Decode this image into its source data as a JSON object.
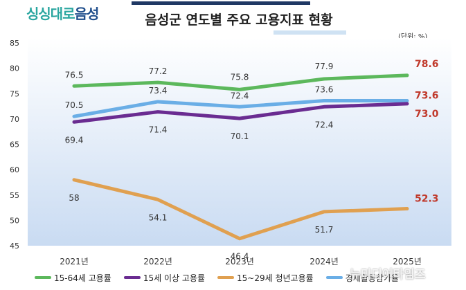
{
  "header": {
    "logo_part1": "싱싱대로",
    "logo_part2": "음성",
    "title": "음성군 연도별 주요 고용지표 현황",
    "unit": "(단위: %)"
  },
  "watermark": "뉴미디어타임즈",
  "colors": {
    "employment_15_64": "#5cb85c",
    "employment_15_plus": "#6a2c91",
    "youth_employment": "#e0a050",
    "participation": "#6aaee6",
    "latest_label": "#c0392b"
  },
  "chart_data": {
    "type": "line",
    "title": "음성군 연도별 주요 고용지표 현황",
    "categories": [
      "2021년",
      "2022년",
      "2023년",
      "2024년",
      "2025년"
    ],
    "ylim": [
      45,
      85
    ],
    "yticks": [
      45,
      50,
      55,
      60,
      65,
      70,
      75,
      80,
      85
    ],
    "grid": false,
    "legend_position": "bottom",
    "series": [
      {
        "name": "15-64세 고용률",
        "values": [
          76.5,
          77.2,
          75.8,
          77.9,
          78.6
        ],
        "labels": [
          "76.5",
          "77.2",
          "75.8",
          "77.9",
          "78.6"
        ]
      },
      {
        "name": "경제활동참가율",
        "values": [
          70.5,
          73.4,
          72.4,
          73.6,
          73.6
        ],
        "labels": [
          "70.5",
          "73.4",
          "72.4",
          "73.6",
          "73.6"
        ]
      },
      {
        "name": "15세 이상 고용률",
        "values": [
          69.4,
          71.4,
          70.1,
          72.4,
          73.0
        ],
        "labels": [
          "69.4",
          "71.4",
          "70.1",
          "72.4",
          "73.0"
        ]
      },
      {
        "name": "15~29세 청년고용률",
        "values": [
          58,
          54.1,
          46.4,
          51.7,
          52.3
        ],
        "labels": [
          "58",
          "54.1",
          "46.4",
          "51.7",
          "52.3"
        ]
      }
    ],
    "legend_entries": [
      "15-64세 고용률",
      "15세 이상 고용률",
      "15~29세 청년고용률",
      "경제활동참가율"
    ]
  }
}
